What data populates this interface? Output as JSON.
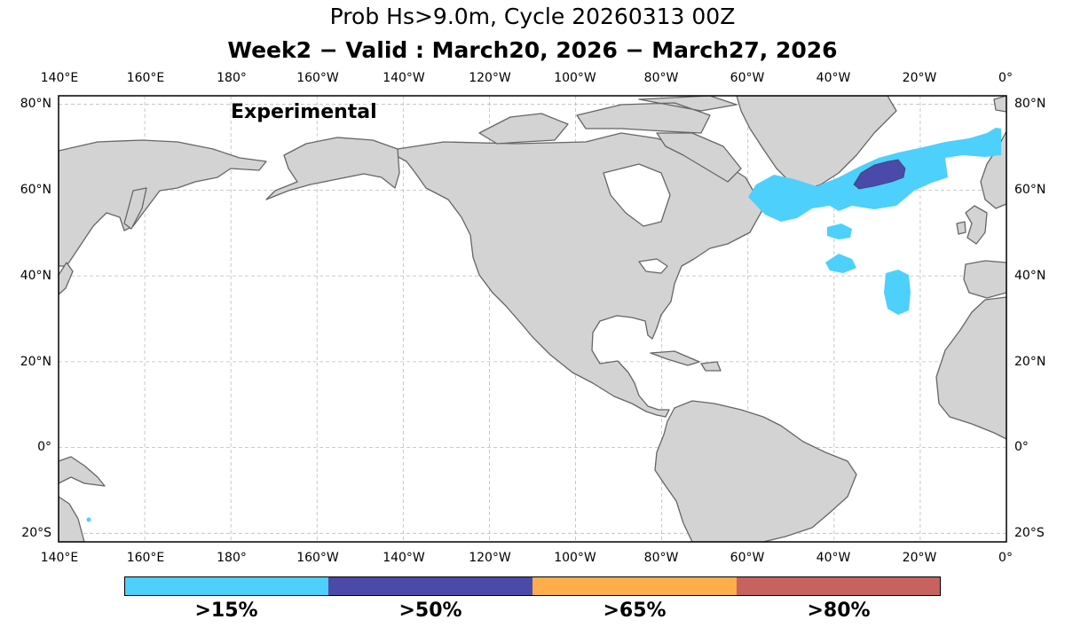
{
  "title": {
    "line1": "Prob Hs>9.0m, Cycle 20260313 00Z",
    "line2": "Week2 − Valid : March20, 2026 − March27, 2026"
  },
  "annotation": "Experimental",
  "map": {
    "projection": "equirectangular",
    "lon_range": [
      140,
      360
    ],
    "lat_range": [
      -22,
      82
    ],
    "land_color": "#d3d3d3",
    "coast_color": "#555555",
    "grid": true,
    "lon_ticks": [
      "140°E",
      "160°E",
      "180°",
      "160°W",
      "140°W",
      "120°W",
      "100°W",
      "80°W",
      "60°W",
      "40°W",
      "20°W",
      "0°"
    ],
    "lat_ticks": [
      "80°N",
      "60°N",
      "40°N",
      "20°N",
      "0°",
      "20°S"
    ]
  },
  "probability_regions": [
    {
      "level": ">15%",
      "area": "Denmark Strait to Norwegian Sea (55–75°N, 68°W–2°W)"
    },
    {
      "level": ">15%",
      "area": "Central North Atlantic near 52°N 40°W"
    },
    {
      "level": ">15%",
      "area": "Central North Atlantic near 43°N 40°W"
    },
    {
      "level": ">15%",
      "area": "Mid Atlantic near 34–40°N 25°W"
    },
    {
      "level": ">15%",
      "area": "South Pacific speck near 17°S 173°E"
    },
    {
      "level": ">50%",
      "area": "South of Iceland (61–66°N, 35–22°W)"
    }
  ],
  "colorbar": {
    "items": [
      {
        "label": ">15%",
        "color": "#4dd0fb"
      },
      {
        "label": ">50%",
        "color": "#4b4aa8"
      },
      {
        "label": ">65%",
        "color": "#fdae4a"
      },
      {
        "label": ">80%",
        "color": "#c8625f"
      }
    ]
  }
}
